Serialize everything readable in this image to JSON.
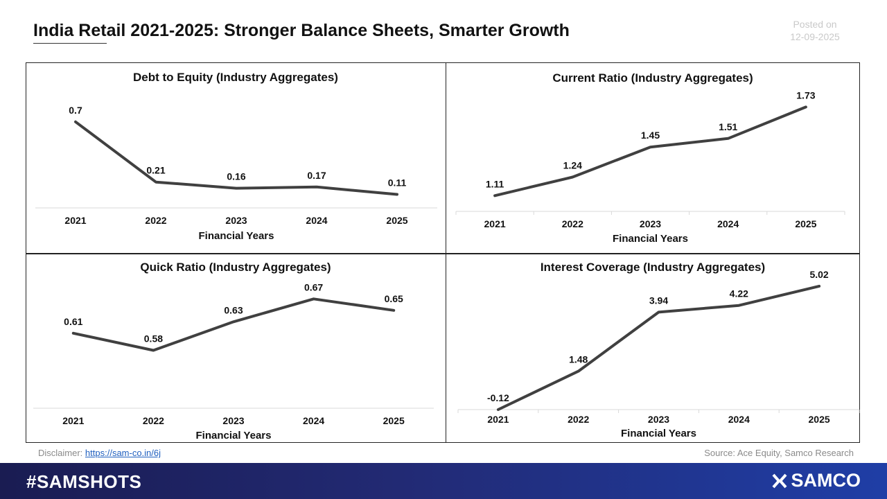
{
  "page": {
    "title": "India Retail 2021-2025: Stronger Balance Sheets, Smarter Growth",
    "posted_label": "Posted on",
    "posted_date": "12-09-2025",
    "disclaimer_label": "Disclaimer:",
    "disclaimer_link": "https://sam-co.in/6j",
    "source": "Source: Ace Equity, Samco Research",
    "hashtag": "#SAMSHOTS",
    "brand": "SAMCO",
    "line_color": "#404040"
  },
  "chart_data": [
    {
      "type": "line",
      "title": "Debt to Equity (Industry Aggregates)",
      "xlabel": "Financial Years",
      "ylabel": "",
      "categories": [
        "2021",
        "2022",
        "2023",
        "2024",
        "2025"
      ],
      "values": [
        0.7,
        0.21,
        0.16,
        0.17,
        0.11
      ],
      "labels": [
        "0.7",
        "0.21",
        "0.16",
        "0.17",
        "0.11"
      ],
      "ylim": [
        0.0,
        0.8
      ]
    },
    {
      "type": "line",
      "title": "Current Ratio (Industry Aggregates)",
      "xlabel": "Financial Years",
      "ylabel": "",
      "categories": [
        "2021",
        "2022",
        "2023",
        "2024",
        "2025"
      ],
      "values": [
        1.11,
        1.24,
        1.45,
        1.51,
        1.73
      ],
      "labels": [
        "1.11",
        "1.24",
        "1.45",
        "1.51",
        "1.73"
      ],
      "ylim": [
        1.0,
        1.8
      ]
    },
    {
      "type": "line",
      "title": "Quick Ratio (Industry Aggregates)",
      "xlabel": "Financial Years",
      "ylabel": "",
      "categories": [
        "2021",
        "2022",
        "2023",
        "2024",
        "2025"
      ],
      "values": [
        0.61,
        0.58,
        0.63,
        0.67,
        0.65
      ],
      "labels": [
        "0.61",
        "0.58",
        "0.63",
        "0.67",
        "0.65"
      ],
      "ylim": [
        0.56,
        0.68
      ]
    },
    {
      "type": "line",
      "title": "Interest Coverage (Industry Aggregates)",
      "xlabel": "Financial Years",
      "ylabel": "",
      "categories": [
        "2021",
        "2022",
        "2023",
        "2024",
        "2025"
      ],
      "values": [
        -0.12,
        1.48,
        3.94,
        4.22,
        5.02
      ],
      "labels": [
        "-0.12",
        "1.48",
        "3.94",
        "4.22",
        "5.02"
      ],
      "ylim": [
        -0.12,
        6.0
      ]
    }
  ]
}
